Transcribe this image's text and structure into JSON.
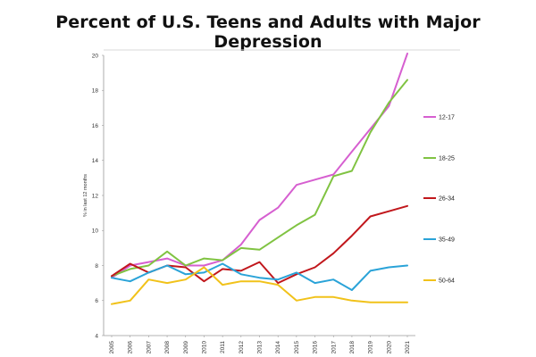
{
  "chart_data": {
    "type": "line",
    "title": "Percent of U.S. Teens and Adults with Major Depression",
    "xlabel": "",
    "ylabel": "% in last 12 months",
    "ylim": [
      4,
      20
    ],
    "yticks": [
      "4",
      "6",
      "8",
      "10",
      "12",
      "14",
      "16",
      "18",
      "20"
    ],
    "x": [
      "2005",
      "2006",
      "2007",
      "2008",
      "2009",
      "2010",
      "2011",
      "2012",
      "2013",
      "2014",
      "2015",
      "2016",
      "2017",
      "2018",
      "2019",
      "2020",
      "2021"
    ],
    "grid": false,
    "legend": "right",
    "series": [
      {
        "name": "12-17",
        "color": "#d65fd0",
        "values": [
          7.3,
          8.0,
          8.2,
          8.4,
          8.0,
          8.0,
          8.3,
          9.2,
          10.6,
          11.3,
          12.6,
          12.9,
          13.2,
          14.5,
          15.8,
          17.1,
          20.1
        ]
      },
      {
        "name": "18-25",
        "color": "#80c342",
        "values": [
          7.4,
          7.8,
          8.0,
          8.8,
          8.0,
          8.4,
          8.3,
          9.0,
          8.9,
          9.6,
          10.3,
          10.9,
          13.1,
          13.4,
          15.6,
          17.3,
          18.6
        ]
      },
      {
        "name": "26-34",
        "color": "#c1171c",
        "values": [
          7.4,
          8.1,
          7.6,
          8.0,
          7.9,
          7.1,
          7.8,
          7.7,
          8.2,
          7.0,
          7.5,
          7.9,
          8.7,
          9.7,
          10.8,
          11.1,
          11.4
        ]
      },
      {
        "name": "35-49",
        "color": "#2aa3d8",
        "values": [
          7.3,
          7.1,
          7.6,
          8.0,
          7.5,
          7.6,
          8.1,
          7.5,
          7.3,
          7.2,
          7.6,
          7.0,
          7.2,
          6.6,
          7.7,
          7.9,
          8.0
        ]
      },
      {
        "name": "50-64",
        "color": "#f1c21a",
        "values": [
          5.8,
          6.0,
          7.2,
          7.0,
          7.2,
          7.9,
          6.9,
          7.1,
          7.1,
          6.9,
          6.0,
          6.2,
          6.2,
          6.0,
          5.9,
          5.9,
          5.9
        ]
      }
    ]
  }
}
